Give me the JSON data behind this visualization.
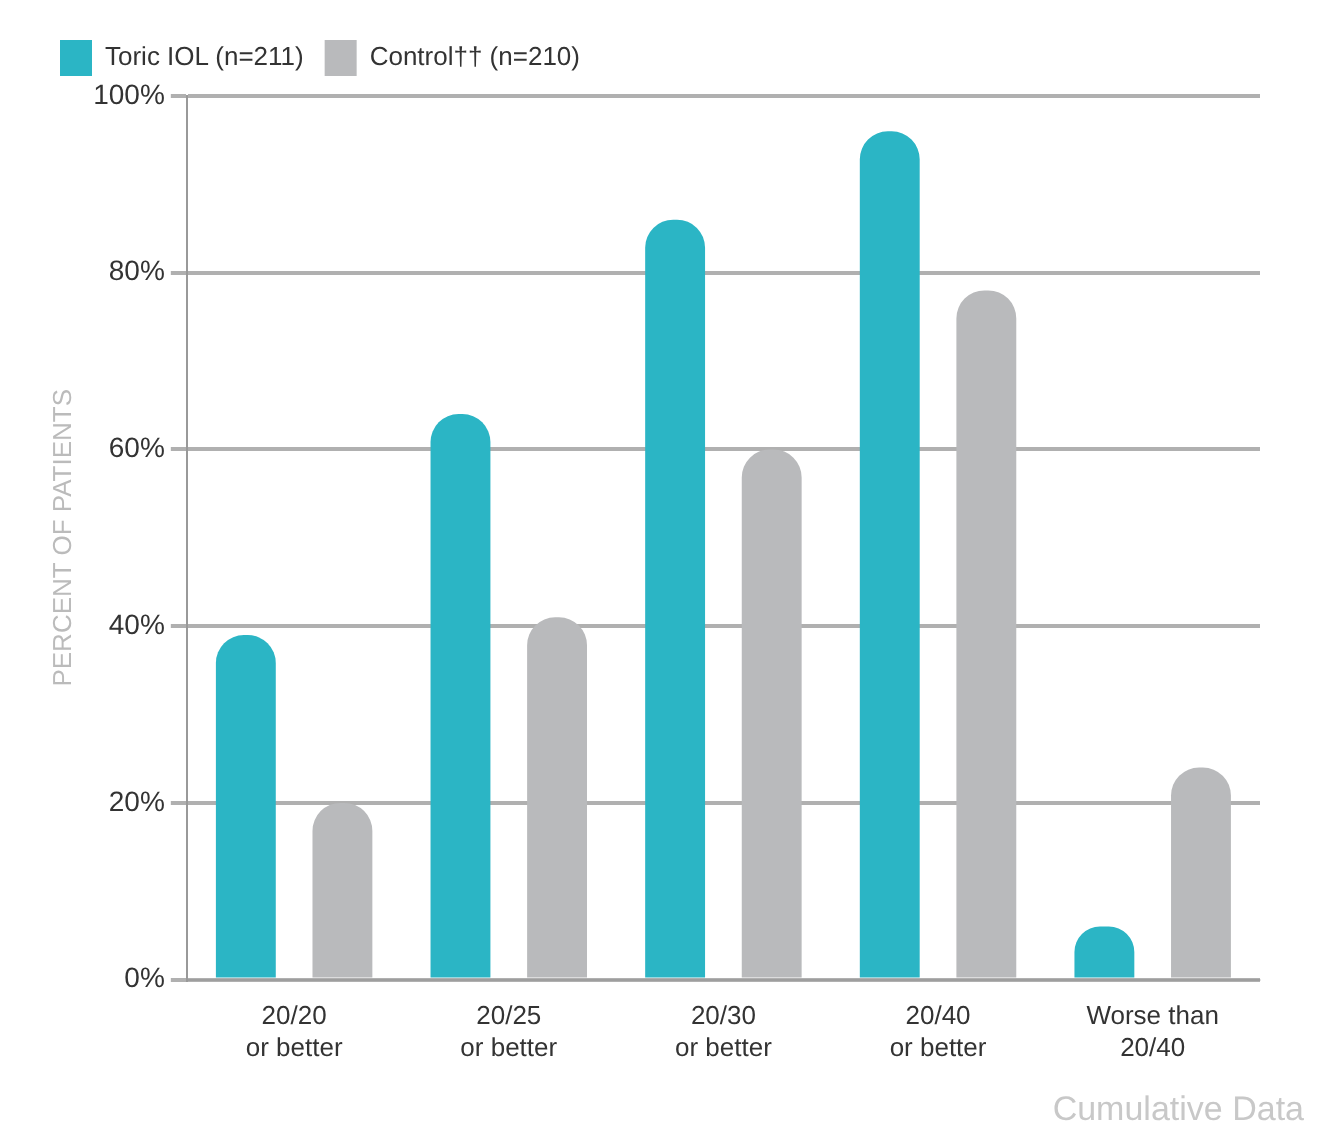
{
  "chart_data": {
    "type": "bar",
    "ylabel": "PERCENT OF PATIENTS",
    "categories": [
      "20/20\nor better",
      "20/25\nor better",
      "20/30\nor better",
      "20/40\nor better",
      "Worse than\n20/40"
    ],
    "series": [
      {
        "name": "Toric IOL (n=211)",
        "color": "#2bb5c5",
        "values": [
          39,
          64,
          86,
          96,
          6
        ]
      },
      {
        "name": "Control†† (n=210)",
        "color": "#b9babc",
        "values": [
          20,
          41,
          60,
          78,
          24
        ]
      }
    ],
    "ylim": [
      0,
      100
    ],
    "yticks": [
      {
        "value": 0,
        "label": "0%"
      },
      {
        "value": 20,
        "label": "20%"
      },
      {
        "value": 40,
        "label": "40%"
      },
      {
        "value": 60,
        "label": "60%"
      },
      {
        "value": 80,
        "label": "80%"
      },
      {
        "value": 100,
        "label": "100%"
      }
    ],
    "grid": "y",
    "legend": "top left",
    "annotations": [
      "Cumulative Data"
    ]
  }
}
